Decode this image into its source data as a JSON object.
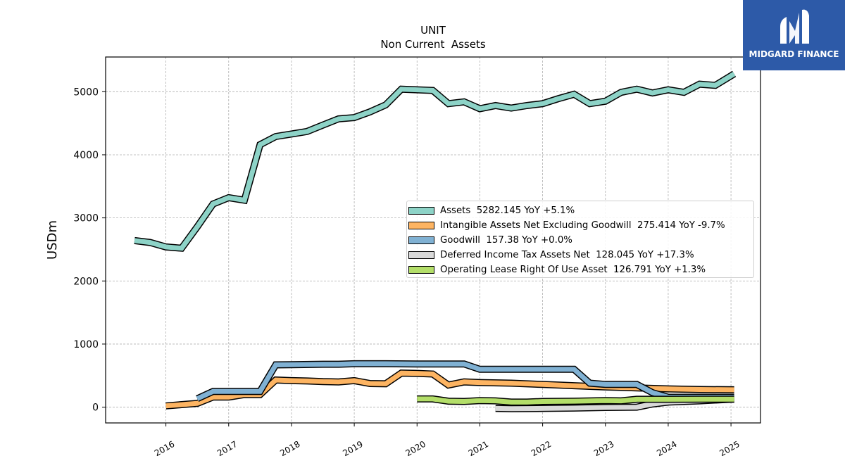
{
  "chart_data": {
    "type": "line",
    "title": "UNIT",
    "subtitle": "Non Current  Assets",
    "xlabel": "",
    "ylabel": "USDm",
    "ylim": [
      -250,
      5550
    ],
    "xlim": [
      2015.04,
      2025.47
    ],
    "yticks": [
      0,
      1000,
      2000,
      3000,
      4000,
      5000
    ],
    "xticks": [
      2016,
      2017,
      2018,
      2019,
      2020,
      2021,
      2022,
      2023,
      2024,
      2025
    ],
    "xtick_labels": [
      "2016",
      "2017",
      "2018",
      "2019",
      "2020",
      "2021",
      "2022",
      "2023",
      "2024",
      "2025"
    ],
    "grid": true,
    "legend_position": "center-right",
    "series": [
      {
        "name": "Assets  5282.145 YoY +5.1%",
        "color": "#8dd3c7",
        "points": [
          [
            2015.5,
            2640
          ],
          [
            2015.75,
            2610
          ],
          [
            2016.0,
            2540
          ],
          [
            2016.25,
            2520
          ],
          [
            2016.5,
            2860
          ],
          [
            2016.75,
            3220
          ],
          [
            2017.0,
            3320
          ],
          [
            2017.25,
            3280
          ],
          [
            2017.5,
            4160
          ],
          [
            2017.75,
            4290
          ],
          [
            2018.0,
            4330
          ],
          [
            2018.25,
            4370
          ],
          [
            2018.5,
            4470
          ],
          [
            2018.75,
            4570
          ],
          [
            2019.0,
            4590
          ],
          [
            2019.25,
            4680
          ],
          [
            2019.5,
            4790
          ],
          [
            2019.75,
            5040
          ],
          [
            2020.0,
            5030
          ],
          [
            2020.25,
            5020
          ],
          [
            2020.5,
            4810
          ],
          [
            2020.75,
            4840
          ],
          [
            2021.0,
            4730
          ],
          [
            2021.25,
            4780
          ],
          [
            2021.5,
            4740
          ],
          [
            2021.75,
            4780
          ],
          [
            2022.0,
            4810
          ],
          [
            2022.25,
            4890
          ],
          [
            2022.5,
            4960
          ],
          [
            2022.75,
            4810
          ],
          [
            2023.0,
            4850
          ],
          [
            2023.25,
            4990
          ],
          [
            2023.5,
            5040
          ],
          [
            2023.75,
            4980
          ],
          [
            2024.0,
            5030
          ],
          [
            2024.25,
            4990
          ],
          [
            2024.5,
            5120
          ],
          [
            2024.75,
            5100
          ],
          [
            2025.05,
            5282
          ]
        ]
      },
      {
        "name": "Intangible Assets Net Excluding Goodwill  275.414 YoY -9.7%",
        "color": "#fdb462",
        "points": [
          [
            2016.0,
            20
          ],
          [
            2016.25,
            40
          ],
          [
            2016.5,
            60
          ],
          [
            2016.75,
            160
          ],
          [
            2017.0,
            160
          ],
          [
            2017.25,
            200
          ],
          [
            2017.5,
            200
          ],
          [
            2017.75,
            430
          ],
          [
            2018.0,
            420
          ],
          [
            2018.25,
            415
          ],
          [
            2018.5,
            405
          ],
          [
            2018.75,
            400
          ],
          [
            2019.0,
            420
          ],
          [
            2019.25,
            375
          ],
          [
            2019.5,
            370
          ],
          [
            2019.75,
            540
          ],
          [
            2020.0,
            535
          ],
          [
            2020.25,
            525
          ],
          [
            2020.5,
            350
          ],
          [
            2020.75,
            400
          ],
          [
            2021.0,
            390
          ],
          [
            2021.5,
            380
          ],
          [
            2022.0,
            360
          ],
          [
            2022.5,
            340
          ],
          [
            2023.0,
            320
          ],
          [
            2023.5,
            305
          ],
          [
            2024.0,
            290
          ],
          [
            2024.5,
            280
          ],
          [
            2025.05,
            275
          ]
        ]
      },
      {
        "name": "Goodwill  157.38 YoY +0.0%",
        "color": "#80b1d3",
        "points": [
          [
            2016.5,
            135
          ],
          [
            2016.75,
            250
          ],
          [
            2017.0,
            250
          ],
          [
            2017.25,
            250
          ],
          [
            2017.5,
            250
          ],
          [
            2017.75,
            670
          ],
          [
            2018.0,
            672
          ],
          [
            2018.5,
            680
          ],
          [
            2018.75,
            680
          ],
          [
            2019.0,
            688
          ],
          [
            2019.5,
            688
          ],
          [
            2020.0,
            685
          ],
          [
            2020.5,
            685
          ],
          [
            2020.75,
            685
          ],
          [
            2021.0,
            600
          ],
          [
            2021.5,
            600
          ],
          [
            2022.0,
            600
          ],
          [
            2022.5,
            600
          ],
          [
            2022.75,
            380
          ],
          [
            2023.0,
            360
          ],
          [
            2023.25,
            360
          ],
          [
            2023.5,
            360
          ],
          [
            2023.75,
            230
          ],
          [
            2024.0,
            157
          ],
          [
            2024.5,
            157
          ],
          [
            2025.05,
            157
          ]
        ]
      },
      {
        "name": "Deferred Income Tax Assets Net  128.045 YoY +17.3%",
        "color": "#d9d9d9",
        "points": [
          [
            2021.25,
            -20
          ],
          [
            2021.5,
            -25
          ],
          [
            2021.75,
            -22
          ],
          [
            2022.0,
            -20
          ],
          [
            2022.5,
            -15
          ],
          [
            2023.0,
            -5
          ],
          [
            2023.5,
            0
          ],
          [
            2023.75,
            50
          ],
          [
            2024.0,
            80
          ],
          [
            2024.5,
            100
          ],
          [
            2025.05,
            128
          ]
        ]
      },
      {
        "name": "Operating Lease Right Of Use Asset  126.791 YoY +1.3%",
        "color": "#b3de69",
        "points": [
          [
            2020.0,
            130
          ],
          [
            2020.25,
            130
          ],
          [
            2020.5,
            95
          ],
          [
            2020.75,
            90
          ],
          [
            2021.0,
            105
          ],
          [
            2021.25,
            100
          ],
          [
            2021.5,
            80
          ],
          [
            2021.75,
            80
          ],
          [
            2022.0,
            90
          ],
          [
            2022.5,
            95
          ],
          [
            2023.0,
            105
          ],
          [
            2023.25,
            100
          ],
          [
            2023.5,
            125
          ],
          [
            2024.0,
            125
          ],
          [
            2024.5,
            127
          ],
          [
            2025.05,
            127
          ]
        ]
      }
    ]
  },
  "logo": {
    "text": "MIDGARD FINANCE",
    "color": "#2d5aa8"
  }
}
